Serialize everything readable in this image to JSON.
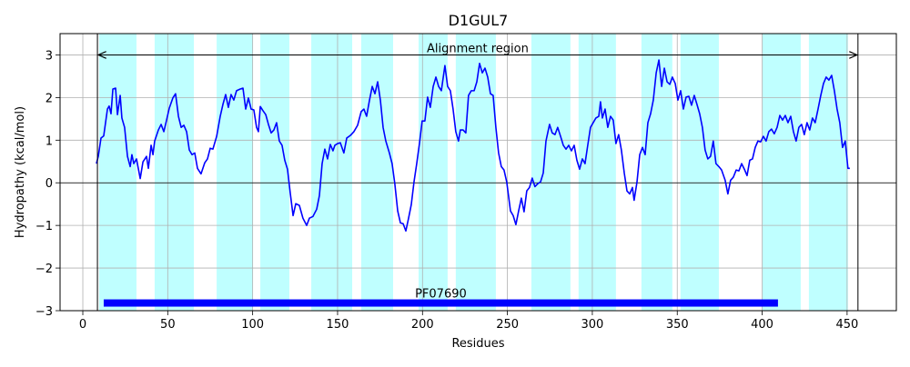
{
  "chart_data": {
    "type": "line",
    "title": "D1GUL7",
    "xlabel": "Residues",
    "ylabel": "Hydropathy (kcal/mol)",
    "color": "#0000ff",
    "x": [
      8.0,
      9.1,
      10.7,
      12.3,
      14.5,
      15.5,
      16.6,
      17.7,
      19.3,
      20.4,
      22.0,
      23.0,
      24.6,
      26.3,
      27.9,
      28.9,
      30.0,
      31.6,
      33.8,
      35.4,
      37.5,
      38.6,
      40.2,
      41.3,
      42.3,
      44.5,
      46.1,
      47.7,
      49.3,
      50.9,
      53.0,
      54.6,
      56.3,
      57.9,
      59.5,
      61.1,
      62.7,
      64.3,
      65.9,
      67.5,
      69.6,
      71.8,
      73.4,
      75.0,
      76.6,
      78.8,
      80.9,
      82.5,
      84.1,
      85.7,
      87.3,
      88.9,
      90.5,
      92.7,
      94.3,
      95.9,
      97.5,
      99.1,
      100.7,
      102.3,
      103.4,
      104.5,
      106.1,
      107.7,
      109.3,
      110.9,
      112.5,
      114.1,
      115.7,
      117.3,
      118.9,
      120.5,
      122.1,
      123.8,
      125.4,
      127.5,
      129.6,
      131.8,
      133.4,
      135.5,
      137.7,
      139.3,
      140.9,
      142.5,
      144.1,
      145.7,
      147.3,
      148.4,
      150.0,
      151.6,
      153.7,
      155.4,
      157.5,
      159.6,
      161.8,
      163.9,
      165.5,
      167.1,
      168.8,
      170.4,
      172.0,
      173.6,
      175.2,
      176.8,
      178.4,
      180.5,
      182.1,
      183.7,
      185.4,
      187.0,
      188.6,
      190.2,
      191.8,
      193.4,
      195.0,
      196.6,
      198.2,
      199.8,
      201.4,
      203.0,
      204.6,
      206.3,
      207.9,
      209.5,
      211.1,
      213.2,
      214.8,
      216.4,
      218.0,
      219.6,
      221.2,
      222.3,
      223.9,
      225.5,
      227.1,
      228.7,
      230.4,
      232.0,
      233.6,
      235.2,
      236.8,
      238.4,
      240.0,
      241.6,
      243.2,
      244.8,
      246.4,
      248.0,
      249.6,
      251.8,
      253.4,
      255.0,
      256.6,
      258.2,
      259.8,
      261.4,
      263.0,
      264.6,
      266.2,
      267.9,
      269.5,
      271.1,
      272.7,
      274.8,
      276.4,
      278.0,
      279.6,
      281.3,
      282.9,
      284.5,
      286.1,
      287.7,
      289.3,
      290.9,
      292.5,
      294.1,
      295.7,
      297.3,
      298.9,
      300.5,
      302.1,
      303.8,
      304.8,
      305.9,
      307.5,
      309.1,
      310.7,
      312.3,
      313.9,
      315.5,
      317.1,
      318.8,
      320.4,
      322.0,
      323.6,
      324.6,
      326.3,
      327.9,
      329.5,
      331.1,
      332.7,
      334.3,
      335.9,
      337.6,
      339.2,
      340.8,
      342.4,
      344.0,
      345.6,
      347.1,
      348.8,
      350.4,
      352.0,
      353.6,
      355.2,
      356.8,
      358.4,
      360.0,
      361.6,
      363.2,
      364.8,
      366.4,
      368.0,
      369.6,
      371.2,
      372.8,
      374.5,
      376.1,
      378.2,
      379.8,
      381.4,
      383.0,
      384.7,
      386.3,
      387.9,
      389.5,
      391.1,
      392.7,
      394.3,
      395.9,
      397.5,
      399.1,
      400.7,
      402.3,
      403.9,
      405.5,
      407.1,
      408.8,
      410.4,
      412.0,
      413.6,
      415.2,
      416.8,
      418.4,
      420.0,
      421.6,
      423.2,
      424.8,
      426.4,
      428.0,
      429.6,
      431.2,
      432.9,
      434.5,
      436.1,
      437.7,
      439.3,
      440.9,
      442.5,
      444.1,
      445.7,
      447.3,
      448.9,
      450.5,
      451.6
    ],
    "values": [
      0.45,
      0.62,
      1.05,
      1.1,
      1.73,
      1.8,
      1.62,
      2.2,
      2.22,
      1.6,
      2.05,
      1.52,
      1.3,
      0.62,
      0.38,
      0.66,
      0.45,
      0.56,
      0.1,
      0.49,
      0.62,
      0.34,
      0.88,
      0.66,
      0.98,
      1.24,
      1.37,
      1.2,
      1.47,
      1.75,
      1.99,
      2.09,
      1.56,
      1.3,
      1.35,
      1.2,
      0.77,
      0.66,
      0.7,
      0.34,
      0.21,
      0.47,
      0.56,
      0.81,
      0.79,
      1.09,
      1.56,
      1.84,
      2.07,
      1.77,
      2.07,
      1.94,
      2.16,
      2.2,
      2.22,
      1.73,
      1.99,
      1.73,
      1.71,
      1.3,
      1.2,
      1.79,
      1.69,
      1.6,
      1.37,
      1.17,
      1.24,
      1.41,
      0.98,
      0.88,
      0.53,
      0.32,
      -0.23,
      -0.77,
      -0.49,
      -0.53,
      -0.83,
      -1.0,
      -0.83,
      -0.79,
      -0.62,
      -0.3,
      0.45,
      0.79,
      0.56,
      0.9,
      0.75,
      0.88,
      0.92,
      0.94,
      0.7,
      1.05,
      1.11,
      1.2,
      1.35,
      1.67,
      1.73,
      1.56,
      1.94,
      2.26,
      2.09,
      2.37,
      1.94,
      1.3,
      0.98,
      0.7,
      0.45,
      -0.02,
      -0.66,
      -0.94,
      -0.96,
      -1.13,
      -0.83,
      -0.51,
      0.02,
      0.45,
      0.92,
      1.45,
      1.45,
      2.01,
      1.77,
      2.26,
      2.48,
      2.26,
      2.16,
      2.75,
      2.26,
      2.16,
      1.73,
      1.2,
      0.98,
      1.24,
      1.24,
      1.17,
      2.05,
      2.16,
      2.16,
      2.37,
      2.8,
      2.58,
      2.69,
      2.48,
      2.09,
      2.05,
      1.3,
      0.7,
      0.38,
      0.3,
      0.02,
      -0.66,
      -0.77,
      -0.98,
      -0.66,
      -0.36,
      -0.68,
      -0.19,
      -0.11,
      0.11,
      -0.09,
      -0.02,
      0.02,
      0.23,
      0.98,
      1.37,
      1.17,
      1.13,
      1.3,
      1.09,
      0.88,
      0.79,
      0.88,
      0.75,
      0.88,
      0.53,
      0.32,
      0.56,
      0.45,
      0.88,
      1.3,
      1.41,
      1.52,
      1.56,
      1.9,
      1.52,
      1.73,
      1.3,
      1.56,
      1.47,
      0.92,
      1.13,
      0.77,
      0.23,
      -0.19,
      -0.26,
      -0.11,
      -0.41,
      0.02,
      0.66,
      0.83,
      0.66,
      1.41,
      1.62,
      1.94,
      2.58,
      2.88,
      2.26,
      2.69,
      2.37,
      2.31,
      2.48,
      2.33,
      1.94,
      2.16,
      1.73,
      2.01,
      2.03,
      1.82,
      2.05,
      1.84,
      1.62,
      1.3,
      0.77,
      0.56,
      0.62,
      0.98,
      0.45,
      0.38,
      0.3,
      0.06,
      -0.26,
      0.06,
      0.13,
      0.3,
      0.28,
      0.45,
      0.32,
      0.17,
      0.53,
      0.56,
      0.83,
      0.98,
      0.96,
      1.09,
      0.98,
      1.2,
      1.26,
      1.15,
      1.3,
      1.58,
      1.47,
      1.58,
      1.41,
      1.56,
      1.2,
      0.98,
      1.3,
      1.37,
      1.13,
      1.41,
      1.24,
      1.52,
      1.41,
      1.73,
      2.05,
      2.33,
      2.48,
      2.41,
      2.52,
      2.16,
      1.73,
      1.41,
      0.83,
      0.98,
      0.34,
      0.34
    ],
    "regions": [
      [
        9.6,
        31.6
      ],
      [
        42.3,
        65.4
      ],
      [
        78.8,
        100.2
      ],
      [
        104.5,
        121.6
      ],
      [
        134.5,
        158.6
      ],
      [
        163.9,
        182.7
      ],
      [
        197.7,
        214.8
      ],
      [
        219.6,
        243.2
      ],
      [
        264.1,
        287.1
      ],
      [
        291.9,
        313.9
      ],
      [
        328.9,
        347.1
      ],
      [
        351.9,
        374.5
      ],
      [
        400.2,
        422.7
      ],
      [
        427.5,
        450.5
      ]
    ],
    "region_color": "#00ffff",
    "region_alpha": 0.25,
    "alignment": {
      "label": "Alignment region",
      "start": 8.6,
      "end": 456.4,
      "y": 3
    },
    "domain": {
      "label": "PF07690",
      "start": 12.3,
      "end": 409.3,
      "y": -2.82,
      "color": "#0000ff"
    },
    "xlim": [
      -13.4,
      479
    ],
    "ylim": [
      -3,
      3.5
    ],
    "xticks": [
      0,
      50,
      100,
      150,
      200,
      250,
      300,
      350,
      400,
      450
    ],
    "yticks": [
      {
        "value": -3,
        "label": "−3"
      },
      {
        "value": -2,
        "label": "−2"
      },
      {
        "value": -1,
        "label": "−1"
      },
      0,
      1,
      2,
      3
    ],
    "grid": true
  }
}
